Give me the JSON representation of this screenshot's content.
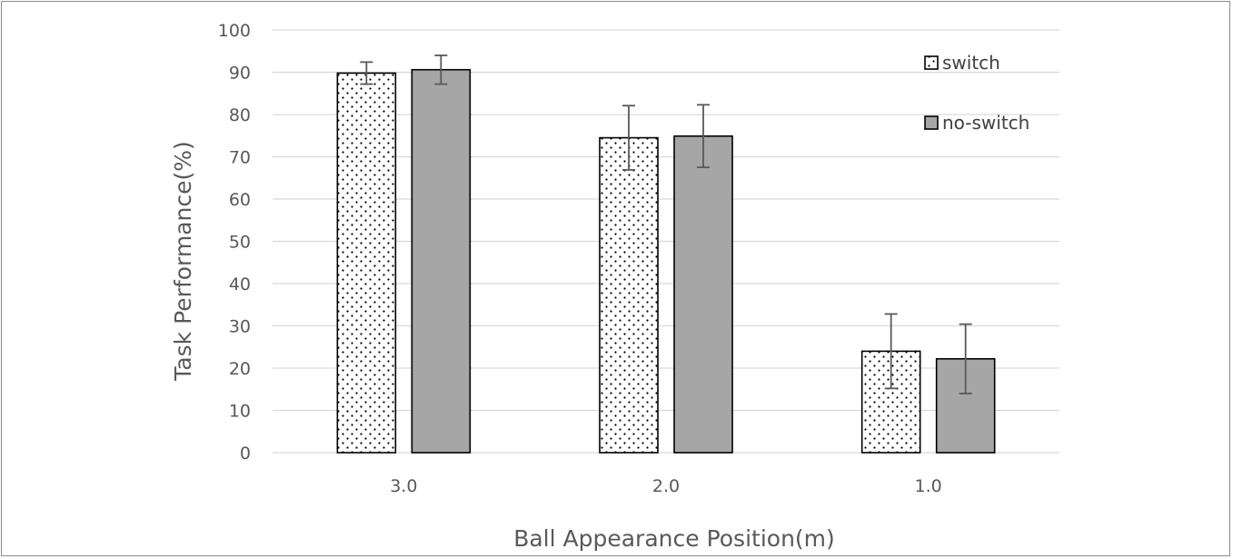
{
  "chart_data": {
    "type": "bar",
    "title": "",
    "xlabel": "Ball Appearance Position(m)",
    "ylabel": "Task Performance(%)",
    "categories": [
      "3.0",
      "2.0",
      "1.0"
    ],
    "ylim": [
      0,
      100
    ],
    "yticks": [
      0,
      10,
      20,
      30,
      40,
      50,
      60,
      70,
      80,
      90,
      100
    ],
    "grid": true,
    "legend_position": "top-right",
    "series": [
      {
        "name": "switch",
        "values": [
          89.8,
          74.5,
          24.0
        ],
        "error": [
          2.6,
          7.6,
          8.8
        ],
        "fill": "dotted",
        "color": "#ffffff"
      },
      {
        "name": "no-switch",
        "values": [
          90.6,
          74.9,
          22.2
        ],
        "error": [
          3.4,
          7.4,
          8.2
        ],
        "fill": "solid",
        "color": "#a6a6a6"
      }
    ],
    "colors": {
      "gridline": "#d9d9d9",
      "bar_outline": "#000000",
      "error_bar": "#595959",
      "text": "#595959"
    }
  }
}
